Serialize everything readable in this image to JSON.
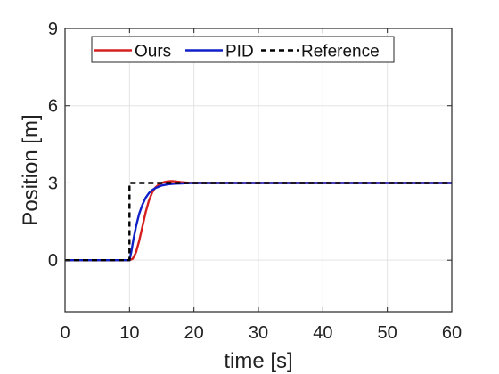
{
  "chart_data": {
    "type": "line",
    "xlabel": "time [s]",
    "ylabel": "Position [m]",
    "xlim": [
      0,
      60
    ],
    "ylim": [
      -2,
      9
    ],
    "xticks": [
      0,
      10,
      20,
      30,
      40,
      50,
      60
    ],
    "yticks": [
      0,
      3,
      6,
      9
    ],
    "grid": true,
    "legend_position": "top",
    "legend_orientation": "horizontal",
    "series": [
      {
        "name": "Ours",
        "color": "#d62020",
        "style": "solid",
        "x": [
          0,
          10,
          10.5,
          11,
          11.5,
          12,
          12.5,
          13,
          13.5,
          14,
          14.5,
          15,
          15.5,
          16,
          16.5,
          17,
          18,
          19,
          20,
          30,
          60
        ],
        "y": [
          0,
          0,
          0.05,
          0.3,
          0.75,
          1.3,
          1.85,
          2.3,
          2.62,
          2.82,
          2.93,
          3.0,
          3.04,
          3.06,
          3.07,
          3.06,
          3.03,
          3.01,
          3.0,
          3.0,
          3.0
        ]
      },
      {
        "name": "PID",
        "color": "#1020c8",
        "style": "solid",
        "x": [
          0,
          10,
          10.3,
          10.6,
          11,
          11.5,
          12,
          12.5,
          13,
          13.5,
          14,
          15,
          16,
          17,
          18,
          19,
          20,
          30,
          60
        ],
        "y": [
          0,
          0,
          0.35,
          0.8,
          1.3,
          1.8,
          2.15,
          2.42,
          2.6,
          2.72,
          2.8,
          2.9,
          2.95,
          2.97,
          2.98,
          2.99,
          3.0,
          3.0,
          3.0
        ]
      },
      {
        "name": "Reference",
        "color": "#000000",
        "style": "dashed",
        "x": [
          0,
          10,
          10,
          60
        ],
        "y": [
          0,
          0,
          3,
          3
        ]
      }
    ]
  }
}
